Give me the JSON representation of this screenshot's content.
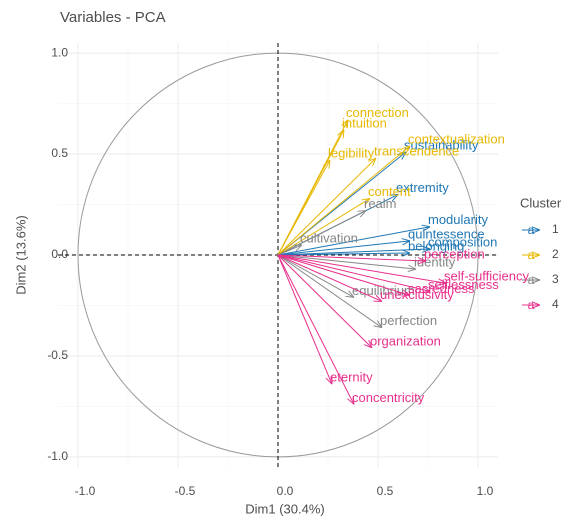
{
  "chart_data": {
    "type": "pca",
    "title": "Variables - PCA",
    "x_label": "Dim1 (30.4%)",
    "y_label": "Dim2 (13.6%)",
    "legend_title": "Cluster",
    "legend_glyph": "a",
    "grid": true,
    "xlim": [
      -1.1,
      1.1
    ],
    "ylim": [
      -1.05,
      1.05
    ],
    "xticks": [
      {
        "value": -1,
        "label": "-1.0"
      },
      {
        "value": -0.5,
        "label": "-0.5"
      },
      {
        "value": 0,
        "label": "0.0"
      },
      {
        "value": 0.5,
        "label": "0.5"
      },
      {
        "value": 1,
        "label": "1.0"
      }
    ],
    "yticks": [
      {
        "value": -1,
        "label": "-1.0"
      },
      {
        "value": -0.5,
        "label": "-0.5"
      },
      {
        "value": 0,
        "label": "0.0"
      },
      {
        "value": 0.5,
        "label": "0.5"
      },
      {
        "value": 1,
        "label": "1.0"
      }
    ],
    "series": [
      {
        "name": "1",
        "color": "#1f77b4",
        "labels": [
          "sustainability",
          "extremity",
          "modularity",
          "quintessence",
          "composition",
          "belonging"
        ],
        "x": [
          0.64,
          0.6,
          0.76,
          0.66,
          0.76,
          0.66
        ],
        "values": [
          0.51,
          0.3,
          0.14,
          0.07,
          0.03,
          0.01
        ]
      },
      {
        "name": "2",
        "color": "#e7b800",
        "labels": [
          "connection",
          "intuition",
          "contextualization",
          "transcendence",
          "legibility",
          "content"
        ],
        "x": [
          0.35,
          0.33,
          0.66,
          0.49,
          0.26,
          0.46
        ],
        "values": [
          0.67,
          0.62,
          0.54,
          0.48,
          0.47,
          0.28
        ]
      },
      {
        "name": "3",
        "color": "#868686",
        "labels": [
          "realm",
          "cultivation",
          "identity",
          "equilibrium",
          "perfection"
        ],
        "x": [
          0.44,
          0.12,
          0.69,
          0.38,
          0.52
        ],
        "values": [
          0.22,
          0.05,
          -0.07,
          -0.21,
          -0.36
        ]
      },
      {
        "name": "4",
        "color": "#e8308c",
        "labels": [
          "perception",
          "self-sufficiency",
          "selflessness",
          "sacredness",
          "unexclusivity",
          "organization",
          "eternity",
          "concentricity"
        ],
        "x": [
          0.74,
          0.84,
          0.76,
          0.66,
          0.52,
          0.47,
          0.27,
          0.38
        ],
        "values": [
          -0.03,
          -0.14,
          -0.18,
          -0.2,
          -0.23,
          -0.46,
          -0.64,
          -0.74
        ]
      }
    ]
  }
}
